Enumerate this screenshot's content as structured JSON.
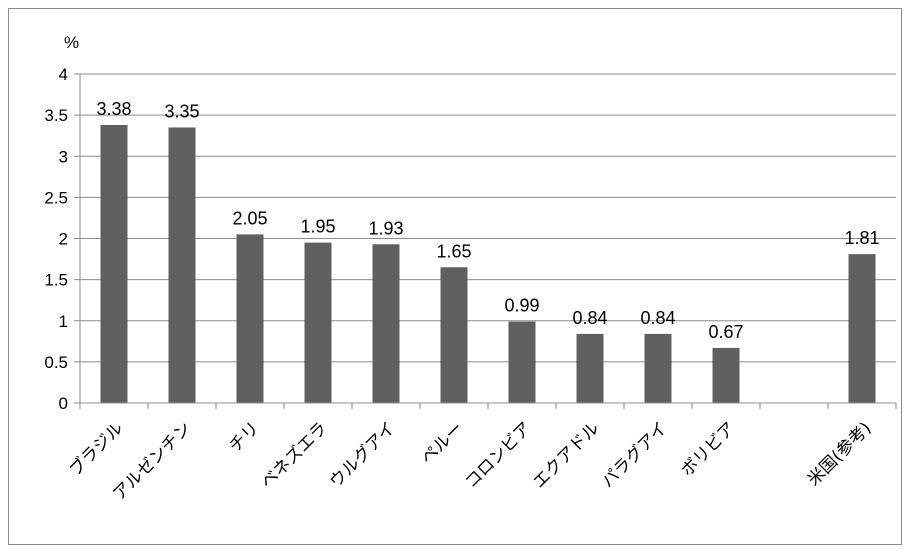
{
  "chart_data": {
    "type": "bar",
    "unit_label": "%",
    "categories": [
      "ブラジル",
      "アルゼンチン",
      "チリ",
      "ベネズエラ",
      "ウルグアイ",
      "ペルー",
      "コロンビア",
      "エクアドル",
      "パラグアイ",
      "ボリビア",
      "",
      "米国(参考)"
    ],
    "values": [
      3.38,
      3.35,
      2.05,
      1.95,
      1.93,
      1.65,
      0.99,
      0.84,
      0.84,
      0.67,
      null,
      1.81
    ],
    "value_labels": [
      "3.38",
      "3.35",
      "2.05",
      "1.95",
      "1.93",
      "1.65",
      "0.99",
      "0.84",
      "0.84",
      "0.67",
      "",
      "1.81"
    ],
    "ylim": [
      0,
      4
    ],
    "yticks": [
      "0",
      "0.5",
      "1",
      "1.5",
      "2",
      "2.5",
      "3",
      "3.5",
      "4"
    ],
    "grid": true,
    "legend": "none",
    "bar_color": "#5f5f5f",
    "grid_color": "#8c8c8c"
  }
}
